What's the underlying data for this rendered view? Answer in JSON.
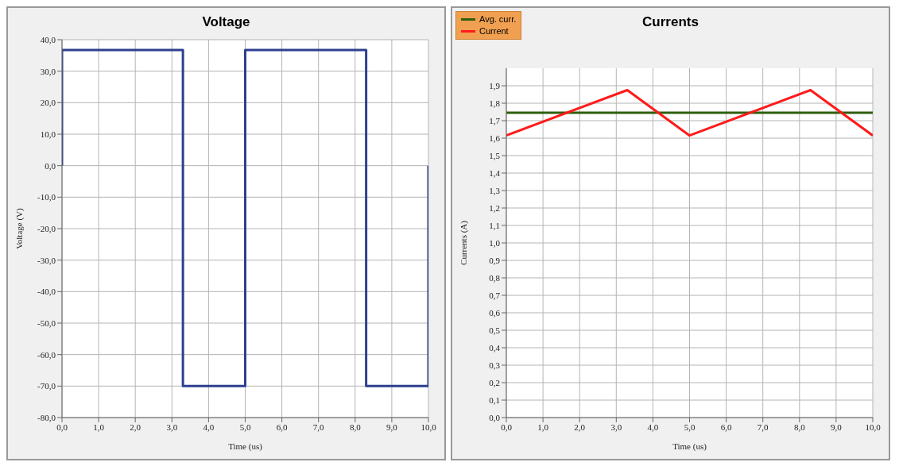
{
  "chart_data": [
    {
      "type": "line",
      "title": "Voltage",
      "xlabel": "Time (us)",
      "ylabel": "Voltage (V)",
      "xlim": [
        0,
        10
      ],
      "ylim": [
        -80,
        40
      ],
      "xticks": [
        {
          "value": 0,
          "label": "0,0"
        },
        {
          "value": 1,
          "label": "1,0"
        },
        {
          "value": 2,
          "label": "2,0"
        },
        {
          "value": 3,
          "label": "3,0"
        },
        {
          "value": 4,
          "label": "4,0"
        },
        {
          "value": 5,
          "label": "5,0"
        },
        {
          "value": 6,
          "label": "6,0"
        },
        {
          "value": 7,
          "label": "7,0"
        },
        {
          "value": 8,
          "label": "8,0"
        },
        {
          "value": 9,
          "label": "9,0"
        },
        {
          "value": 10,
          "label": "10,0"
        }
      ],
      "yticks": [
        {
          "value": -80,
          "label": "-80,0"
        },
        {
          "value": -70,
          "label": "-70,0"
        },
        {
          "value": -60,
          "label": "-60,0"
        },
        {
          "value": -50,
          "label": "-50,0"
        },
        {
          "value": -40,
          "label": "-40,0"
        },
        {
          "value": -30,
          "label": "-30,0"
        },
        {
          "value": -20,
          "label": "-20,0"
        },
        {
          "value": -10,
          "label": "-10,0"
        },
        {
          "value": 0,
          "label": "0,0"
        },
        {
          "value": 10,
          "label": "10,0"
        },
        {
          "value": 20,
          "label": "20,0"
        },
        {
          "value": 30,
          "label": "30,0"
        },
        {
          "value": 40,
          "label": "40,0"
        }
      ],
      "grid": true,
      "legend": false,
      "series": [
        {
          "color": "#2e3f8f",
          "x": [
            0,
            0,
            3.3,
            3.3,
            5.0,
            5.0,
            8.3,
            8.3,
            10,
            10
          ],
          "values": [
            0,
            36.7,
            36.7,
            -70,
            -70,
            36.7,
            36.7,
            -70,
            -70,
            0
          ]
        }
      ]
    },
    {
      "type": "line",
      "title": "Currents",
      "xlabel": "Time (us)",
      "ylabel": "Currents (A)",
      "xlim": [
        0,
        10
      ],
      "ylim": [
        0,
        2.0
      ],
      "xticks": [
        {
          "value": 0,
          "label": "0,0"
        },
        {
          "value": 1,
          "label": "1,0"
        },
        {
          "value": 2,
          "label": "2,0"
        },
        {
          "value": 3,
          "label": "3,0"
        },
        {
          "value": 4,
          "label": "4,0"
        },
        {
          "value": 5,
          "label": "5,0"
        },
        {
          "value": 6,
          "label": "6,0"
        },
        {
          "value": 7,
          "label": "7,0"
        },
        {
          "value": 8,
          "label": "8,0"
        },
        {
          "value": 9,
          "label": "9,0"
        },
        {
          "value": 10,
          "label": "10,0"
        }
      ],
      "yticks": [
        {
          "value": 0,
          "label": "0,0"
        },
        {
          "value": 0.1,
          "label": "0,1"
        },
        {
          "value": 0.2,
          "label": "0,2"
        },
        {
          "value": 0.3,
          "label": "0,3"
        },
        {
          "value": 0.4,
          "label": "0,4"
        },
        {
          "value": 0.5,
          "label": "0,5"
        },
        {
          "value": 0.6,
          "label": "0,6"
        },
        {
          "value": 0.7,
          "label": "0,7"
        },
        {
          "value": 0.8,
          "label": "0,8"
        },
        {
          "value": 0.9,
          "label": "0,9"
        },
        {
          "value": 1.0,
          "label": "1,0"
        },
        {
          "value": 1.1,
          "label": "1,1"
        },
        {
          "value": 1.2,
          "label": "1,2"
        },
        {
          "value": 1.3,
          "label": "1,3"
        },
        {
          "value": 1.4,
          "label": "1,4"
        },
        {
          "value": 1.5,
          "label": "1,5"
        },
        {
          "value": 1.6,
          "label": "1,6"
        },
        {
          "value": 1.7,
          "label": "1,7"
        },
        {
          "value": 1.8,
          "label": "1,8"
        },
        {
          "value": 1.9,
          "label": "1,9"
        }
      ],
      "grid": true,
      "legend": "top left",
      "series": [
        {
          "name": "Avg. curr.",
          "color": "#2f5f0f",
          "x": [
            0,
            10
          ],
          "values": [
            1.745,
            1.745
          ]
        },
        {
          "name": "Current",
          "color": "#ff1a1a",
          "x": [
            0,
            3.3,
            5.0,
            8.3,
            10
          ],
          "values": [
            1.615,
            1.875,
            1.615,
            1.875,
            1.615
          ]
        }
      ]
    }
  ]
}
